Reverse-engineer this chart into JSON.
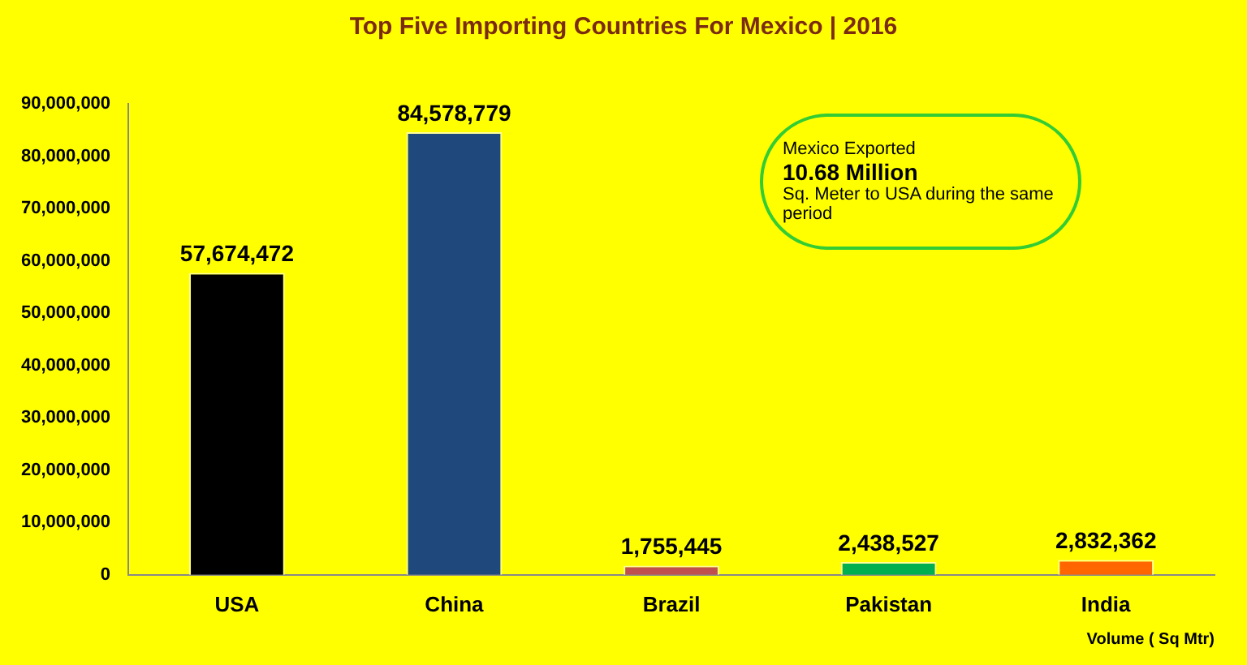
{
  "chart_data": {
    "type": "bar",
    "title": "Top Five Importing Countries For Mexico | 2016",
    "xlabel": "Volume ( Sq Mtr)",
    "categories": [
      "USA",
      "China",
      "Brazil",
      "Pakistan",
      "India"
    ],
    "values": [
      57674472,
      84578779,
      1755445,
      2438527,
      2832362
    ],
    "value_labels": [
      "57,674,472",
      "84,578,779",
      "1,755,445",
      "2,438,527",
      "2,832,362"
    ],
    "colors": [
      "#000000",
      "#1f497d",
      "#c0504d",
      "#00b050",
      "#ff6600"
    ],
    "ylim": [
      0,
      90000000
    ],
    "yticks": [
      0,
      {
        "value": 10000000,
        "label": "10,000,000"
      },
      {
        "value": 20000000,
        "label": "20,000,000"
      },
      {
        "value": 30000000,
        "label": "30,000,000"
      },
      {
        "value": 40000000,
        "label": "40,000,000"
      },
      {
        "value": 50000000,
        "label": "50,000,000"
      },
      {
        "value": 60000000,
        "label": "60,000,000"
      },
      {
        "value": 70000000,
        "label": "70,000,000"
      },
      {
        "value": 80000000,
        "label": "80,000,000"
      },
      {
        "value": 90000000,
        "label": "90,000,000"
      }
    ],
    "grid": false,
    "legend": false,
    "annotations": [
      "Mexico Exported",
      "10.68 Million",
      "Sq. Meter to USA during the same period"
    ]
  }
}
